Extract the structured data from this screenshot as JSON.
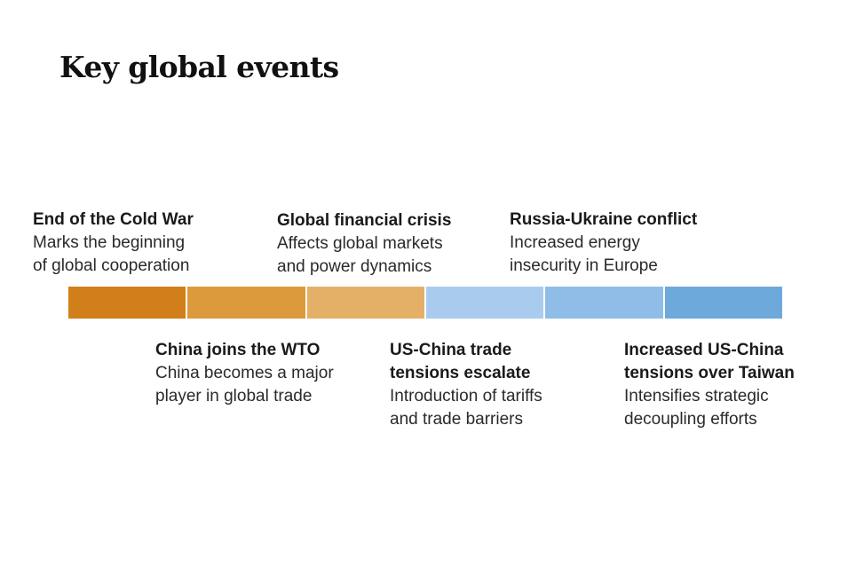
{
  "title": "Key global events",
  "events_top": [
    {
      "heading_lines": [
        "End of the Cold War"
      ],
      "desc_lines": [
        "Marks the beginning",
        "of global cooperation"
      ]
    },
    {
      "heading_lines": [
        "Global financial crisis"
      ],
      "desc_lines": [
        "Affects global markets",
        "and power dynamics"
      ]
    },
    {
      "heading_lines": [
        "Russia-Ukraine conflict"
      ],
      "desc_lines": [
        "Increased energy",
        "insecurity in Europe"
      ]
    }
  ],
  "events_bottom": [
    {
      "heading_lines": [
        "China joins the WTO"
      ],
      "desc_lines": [
        "China becomes a major",
        "player in global trade"
      ]
    },
    {
      "heading_lines": [
        "US-China trade",
        "tensions escalate"
      ],
      "desc_lines": [
        "Introduction of tariffs",
        "and trade barriers"
      ]
    },
    {
      "heading_lines": [
        "Increased US-China",
        "tensions over Taiwan"
      ],
      "desc_lines": [
        "Intensifies strategic",
        "decoupling efforts"
      ]
    }
  ],
  "segment_colors": [
    "#d07f1a",
    "#dc9a3c",
    "#e4b068",
    "#a9ccee",
    "#8fbde8",
    "#6ea9dc"
  ]
}
